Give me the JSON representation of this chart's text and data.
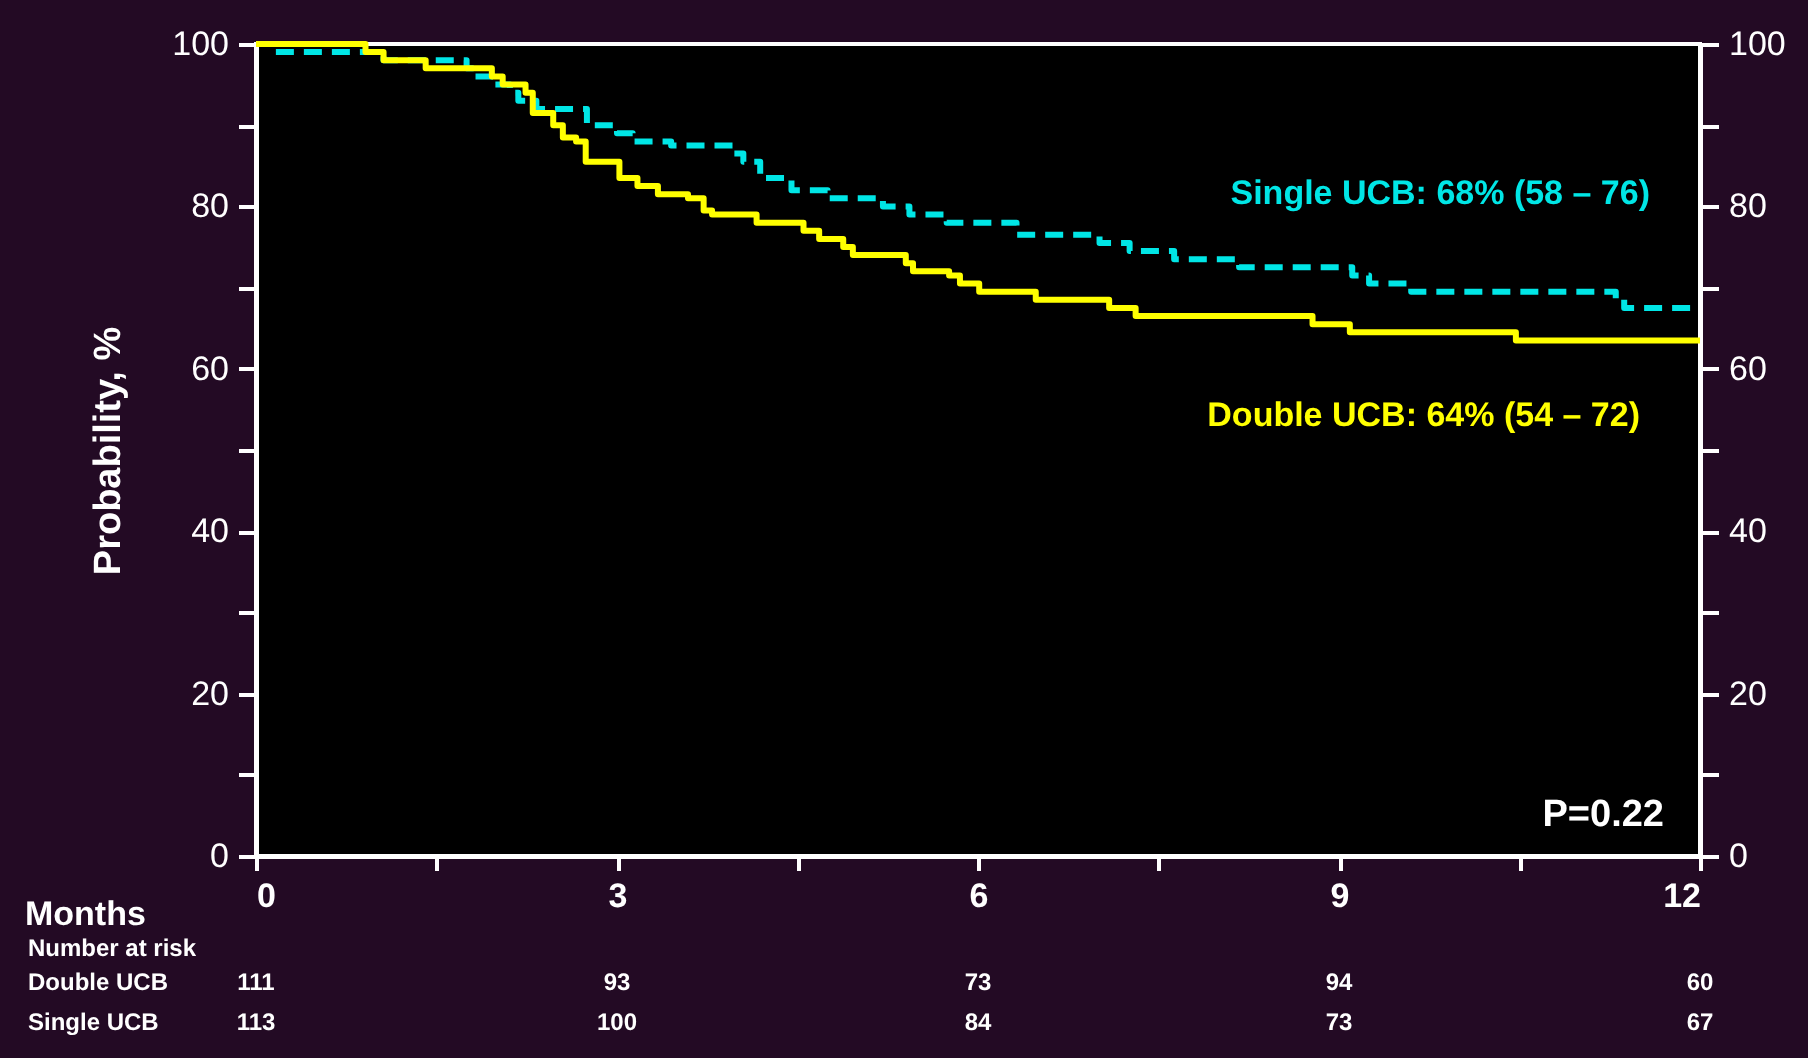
{
  "chart_data": {
    "type": "step",
    "ylabel": "Probability, %",
    "xlabel": "Months",
    "xlim": [
      0,
      12
    ],
    "xticks": [
      0,
      {
        "value": 1.5,
        "label": null
      },
      3,
      {
        "value": 4.5,
        "label": null
      },
      6,
      {
        "value": 7.5,
        "label": null
      },
      9,
      {
        "value": 10.5,
        "label": null
      },
      12
    ],
    "ylim": [
      0,
      100
    ],
    "yticks": [
      0,
      {
        "value": 10,
        "label": null
      },
      20,
      {
        "value": 30,
        "label": null
      },
      40,
      {
        "value": 50,
        "label": null
      },
      60,
      {
        "value": 70,
        "label": null
      },
      80,
      {
        "value": 90,
        "label": null
      },
      100
    ],
    "y2lim": [
      0,
      100
    ],
    "y2ticks": [
      0,
      {
        "value": 10,
        "label": null
      },
      20,
      {
        "value": 30,
        "label": null
      },
      40,
      {
        "value": 50,
        "label": null
      },
      60,
      {
        "value": 70,
        "label": null
      },
      80,
      {
        "value": 90,
        "label": null
      },
      100
    ],
    "grid": false,
    "marker": "none",
    "series": [
      {
        "color": "#00e6e6",
        "line_style": "dashed",
        "x": [
          0,
          0.14,
          1.06,
          1.75,
          1.81,
          1.97,
          2.11,
          2.18,
          2.33,
          2.75,
          3.0,
          3.13,
          3.45,
          3.96,
          4.05,
          4.19,
          4.45,
          4.75,
          5.21,
          5.43,
          5.74,
          6.32,
          7.01,
          7.26,
          7.63,
          8.17,
          9.11,
          9.25,
          9.6,
          11.3,
          11.37,
          12
        ],
        "values": [
          100,
          99,
          98,
          97,
          96,
          95,
          94,
          93,
          92,
          90,
          89,
          88,
          87.5,
          86.5,
          85.5,
          83.5,
          82,
          81,
          80,
          79,
          78,
          76.5,
          75.5,
          74.5,
          73.5,
          72.5,
          71.5,
          70.5,
          69.5,
          68.5,
          67.5,
          67.5
        ]
      },
      {
        "color": "#ffff00",
        "line_style": "solid",
        "x": [
          0,
          0.91,
          1.06,
          1.41,
          1.96,
          2.05,
          2.24,
          2.3,
          2.47,
          2.55,
          2.66,
          2.74,
          3.02,
          3.17,
          3.34,
          3.59,
          3.72,
          3.79,
          4.16,
          4.55,
          4.68,
          4.88,
          4.96,
          5.4,
          5.46,
          5.76,
          5.85,
          6.01,
          6.48,
          7.09,
          7.31,
          8.78,
          9.09,
          10.47,
          12
        ],
        "values": [
          100,
          99,
          98,
          97,
          96,
          95,
          94,
          91.5,
          90,
          88.5,
          88,
          85.5,
          83.5,
          82.5,
          81.5,
          81,
          79.5,
          79,
          78,
          77,
          76,
          75,
          74,
          73,
          72,
          71.5,
          70.5,
          69.5,
          68.5,
          67.5,
          66.5,
          65.5,
          64.5,
          63.5,
          63.5
        ]
      }
    ],
    "annotations": [
      "Single UCB: 68% (58 – 76)",
      "Double UCB: 64% (54 – 72)",
      "P=0.22",
      "Number at risk",
      "Double UCB",
      "111",
      "93",
      "73",
      "94",
      "60",
      "Single UCB",
      "113",
      "100",
      "84",
      "73",
      "67"
    ]
  }
}
